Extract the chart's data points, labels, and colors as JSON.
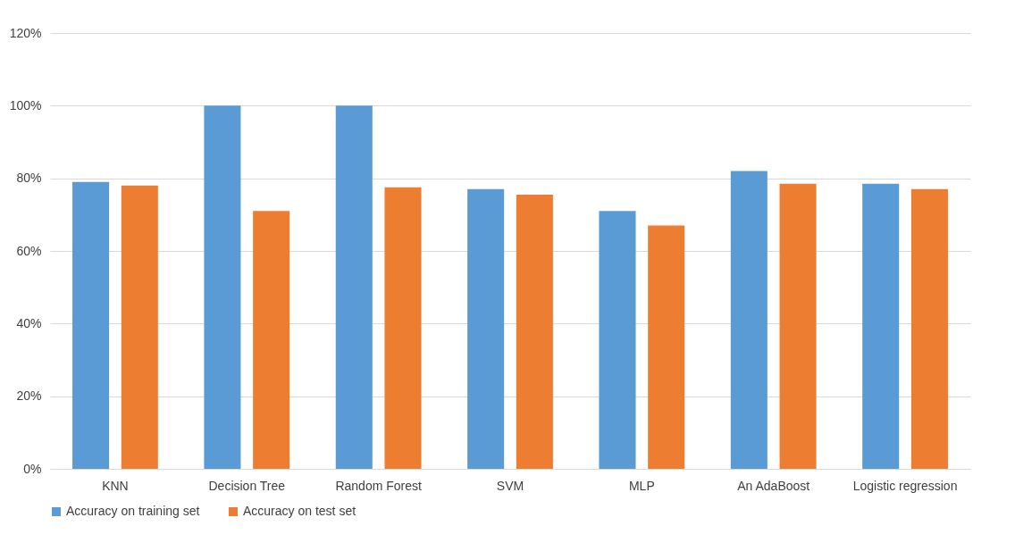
{
  "chart_data": {
    "type": "bar",
    "categories": [
      "KNN",
      "Decision Tree",
      "Random Forest",
      "SVM",
      "MLP",
      "An AdaBoost",
      "Logistic regression"
    ],
    "series": [
      {
        "name": "Accuracy on training set",
        "color": "#5b9bd5",
        "values": [
          79,
          100,
          100,
          77,
          71,
          82,
          78.5
        ]
      },
      {
        "name": "Accuracy on test set",
        "color": "#ed7d31",
        "values": [
          78,
          71,
          77.5,
          75.5,
          67,
          78.5,
          77
        ]
      }
    ],
    "ylim": [
      0,
      120
    ],
    "yticks": [
      {
        "value": 0,
        "label": "0%"
      },
      {
        "value": 20,
        "label": "20%"
      },
      {
        "value": 40,
        "label": "40%"
      },
      {
        "value": 60,
        "label": "60%"
      },
      {
        "value": 80,
        "label": "80%"
      },
      {
        "value": 100,
        "label": "100%"
      },
      {
        "value": 120,
        "label": "120%"
      }
    ],
    "grid": "y",
    "legend": "bottom"
  }
}
